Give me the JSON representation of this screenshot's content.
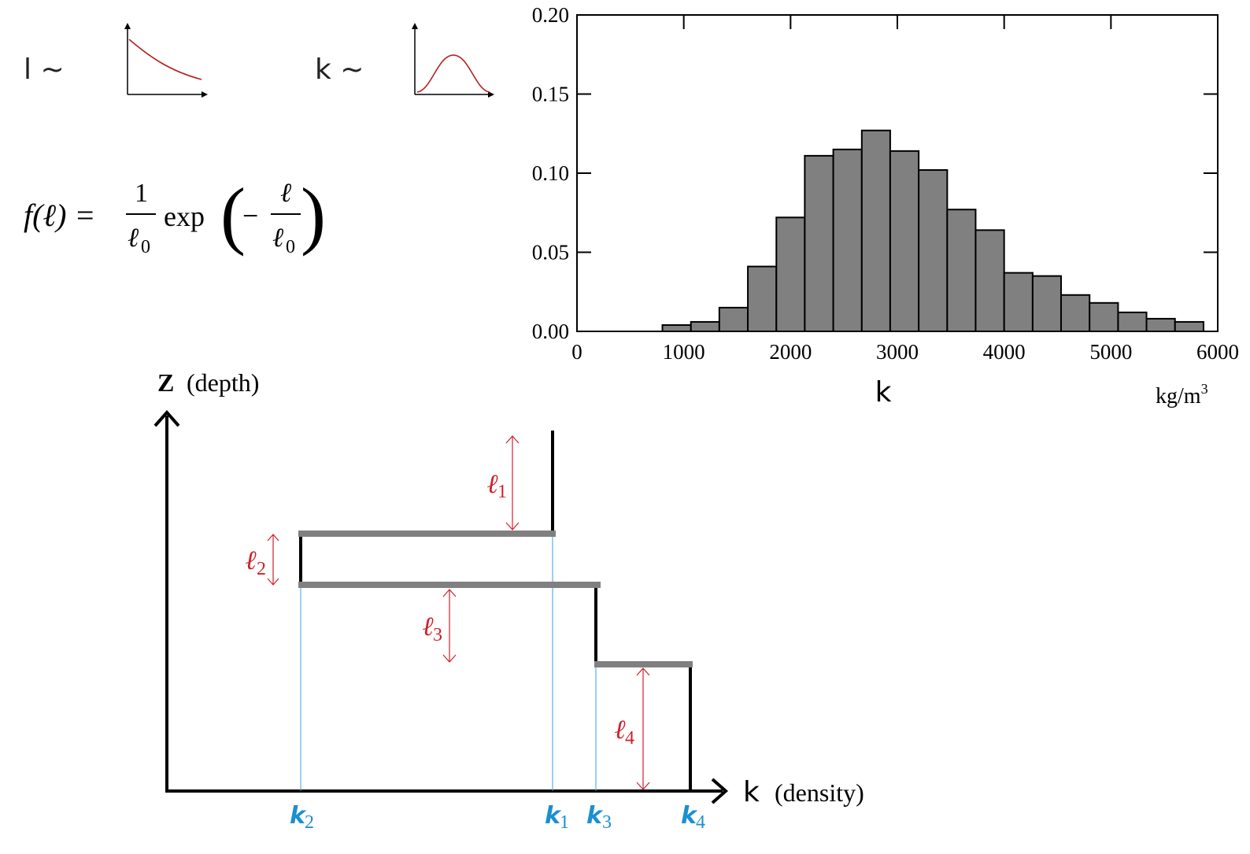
{
  "symbols": {
    "l_sim": "l ~",
    "k_sim": "k ~"
  },
  "formula": {
    "lhs": "f(ℓ) =",
    "one": "1",
    "ell0": "ℓ",
    "ell0_sub": "0",
    "exp": "exp",
    "minus": "−",
    "ell": "ℓ",
    "ell0_b": "ℓ",
    "ell0_b_sub": "0",
    "lparen": "(",
    "rparen": ")"
  },
  "chart_data": {
    "type": "bar",
    "title": "",
    "xlabel": "k",
    "xunit": "kg/m3",
    "ylabel": "",
    "xlim": [
      0,
      6000
    ],
    "ylim": [
      0,
      0.2
    ],
    "x_ticks": [
      "0",
      "1000",
      "2000",
      "3000",
      "4000",
      "5000",
      "6000"
    ],
    "y_ticks": [
      "0.00",
      "0.05",
      "0.10",
      "0.15",
      "0.20"
    ],
    "bin_width": 267,
    "bins": [
      {
        "x0": 800,
        "x1": 1067,
        "value": 0.004
      },
      {
        "x0": 1067,
        "x1": 1333,
        "value": 0.006
      },
      {
        "x0": 1333,
        "x1": 1600,
        "value": 0.015
      },
      {
        "x0": 1600,
        "x1": 1867,
        "value": 0.041
      },
      {
        "x0": 1867,
        "x1": 2133,
        "value": 0.072
      },
      {
        "x0": 2133,
        "x1": 2400,
        "value": 0.111
      },
      {
        "x0": 2400,
        "x1": 2667,
        "value": 0.115
      },
      {
        "x0": 2667,
        "x1": 2933,
        "value": 0.127
      },
      {
        "x0": 2933,
        "x1": 3200,
        "value": 0.114
      },
      {
        "x0": 3200,
        "x1": 3467,
        "value": 0.102
      },
      {
        "x0": 3467,
        "x1": 3733,
        "value": 0.077
      },
      {
        "x0": 3733,
        "x1": 4000,
        "value": 0.064
      },
      {
        "x0": 4000,
        "x1": 4267,
        "value": 0.037
      },
      {
        "x0": 4267,
        "x1": 4533,
        "value": 0.035
      },
      {
        "x0": 4533,
        "x1": 4800,
        "value": 0.023
      },
      {
        "x0": 4800,
        "x1": 5067,
        "value": 0.018
      },
      {
        "x0": 5067,
        "x1": 5333,
        "value": 0.012
      },
      {
        "x0": 5333,
        "x1": 5600,
        "value": 0.008
      },
      {
        "x0": 5600,
        "x1": 5867,
        "value": 0.006
      }
    ],
    "bar_color": "#808080",
    "grid": false
  },
  "diagram": {
    "z_axis_label": "Z",
    "z_axis_sub": "(depth)",
    "k_axis_label": "k",
    "k_axis_sub": "(density)",
    "layer_labels": [
      {
        "letter": "ℓ",
        "sub": "1"
      },
      {
        "letter": "ℓ",
        "sub": "2"
      },
      {
        "letter": "ℓ",
        "sub": "3"
      },
      {
        "letter": "ℓ",
        "sub": "4"
      }
    ],
    "density_labels": [
      {
        "letter": "k",
        "sub": "2"
      },
      {
        "letter": "k",
        "sub": "1"
      },
      {
        "letter": "k",
        "sub": "3"
      },
      {
        "letter": "k",
        "sub": "4"
      }
    ],
    "colors": {
      "layer": "#d0202a",
      "density": "#1a90d0",
      "interface": "#808080",
      "profile": "#000000"
    }
  }
}
